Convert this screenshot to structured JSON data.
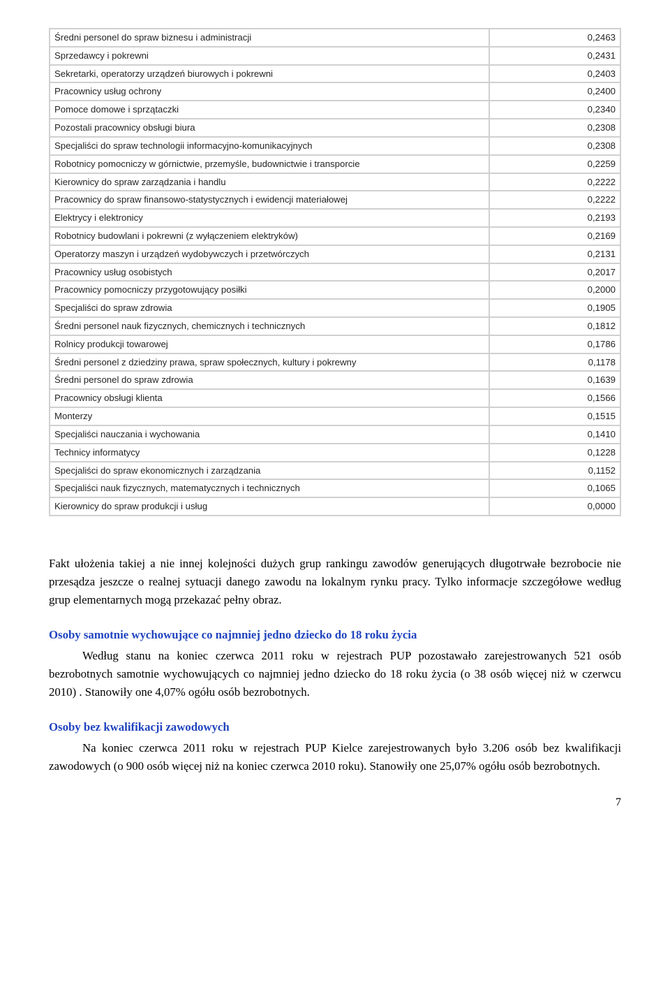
{
  "table": {
    "rows": [
      {
        "label": "Średni personel do spraw biznesu i administracji",
        "value": "0,2463"
      },
      {
        "label": "Sprzedawcy i pokrewni",
        "value": "0,2431"
      },
      {
        "label": "Sekretarki, operatorzy urządzeń biurowych i pokrewni",
        "value": "0,2403"
      },
      {
        "label": "Pracownicy usług ochrony",
        "value": "0,2400"
      },
      {
        "label": "Pomoce domowe i sprzątaczki",
        "value": "0,2340"
      },
      {
        "label": "Pozostali pracownicy obsługi biura",
        "value": "0,2308"
      },
      {
        "label": "Specjaliści do spraw technologii informacyjno-komunikacyjnych",
        "value": "0,2308"
      },
      {
        "label": "Robotnicy pomocniczy w górnictwie, przemyśle, budownictwie i transporcie",
        "value": "0,2259"
      },
      {
        "label": "Kierownicy do spraw zarządzania i handlu",
        "value": "0,2222"
      },
      {
        "label": "Pracownicy do spraw finansowo-statystycznych i ewidencji materiałowej",
        "value": "0,2222"
      },
      {
        "label": "Elektrycy i elektronicy",
        "value": "0,2193"
      },
      {
        "label": "Robotnicy budowlani i pokrewni (z wyłączeniem elektryków)",
        "value": "0,2169"
      },
      {
        "label": "Operatorzy maszyn i urządzeń wydobywczych i przetwórczych",
        "value": "0,2131"
      },
      {
        "label": "Pracownicy usług osobistych",
        "value": "0,2017"
      },
      {
        "label": "Pracownicy pomocniczy przygotowujący posiłki",
        "value": "0,2000"
      },
      {
        "label": "Specjaliści do spraw zdrowia",
        "value": "0,1905"
      },
      {
        "label": "Średni personel nauk fizycznych, chemicznych i technicznych",
        "value": "0,1812"
      },
      {
        "label": "Rolnicy produkcji towarowej",
        "value": "0,1786"
      },
      {
        "label": "Średni personel z dziedziny prawa, spraw społecznych, kultury i pokrewny",
        "value": "0,1178"
      },
      {
        "label": "Średni personel do spraw zdrowia",
        "value": "0,1639"
      },
      {
        "label": "Pracownicy obsługi klienta",
        "value": "0,1566"
      },
      {
        "label": "Monterzy",
        "value": "0,1515"
      },
      {
        "label": "Specjaliści nauczania i wychowania",
        "value": "0,1410"
      },
      {
        "label": "Technicy informatycy",
        "value": "0,1228"
      },
      {
        "label": "Specjaliści do spraw ekonomicznych i zarządzania",
        "value": "0,1152"
      },
      {
        "label": "Specjaliści nauk fizycznych, matematycznych i technicznych",
        "value": "0,1065"
      },
      {
        "label": "Kierownicy do spraw produkcji i usług",
        "value": "0,0000"
      }
    ]
  },
  "paragraphs": {
    "p1": "Fakt ułożenia takiej a nie innej kolejności dużych grup rankingu zawodów generujących długotrwałe bezrobocie nie przesądza jeszcze o realnej sytuacji danego zawodu na lokalnym rynku pracy. Tylko informacje szczegółowe według grup elementarnych mogą przekazać pełny obraz.",
    "h1": "Osoby samotnie wychowujące co najmniej jedno dziecko do 18 roku życia",
    "p2": "Według stanu na koniec czerwca 2011 roku w rejestrach PUP pozostawało zarejestrowanych 521 osób bezrobotnych samotnie wychowujących co najmniej jedno dziecko do 18 roku życia (o 38 osób więcej niż w czerwcu 2010) . Stanowiły one 4,07% ogółu osób bezrobotnych.",
    "h2": "Osoby bez kwalifikacji zawodowych",
    "p3": "Na koniec czerwca 2011 roku w rejestrach PUP Kielce zarejestrowanych było 3.206 osób bez kwalifikacji zawodowych (o 900 osób więcej niż na koniec czerwca 2010 roku). Stanowiły one 25,07% ogółu osób bezrobotnych."
  },
  "page_number": "7",
  "colors": {
    "heading_color": "#2044c0",
    "border_color": "#d0d0d0",
    "text_color": "#000000"
  }
}
